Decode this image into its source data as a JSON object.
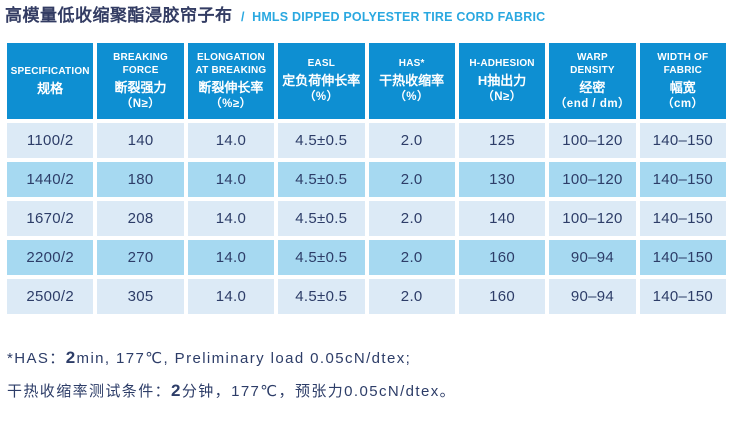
{
  "colors": {
    "header_blue": "#0E8FD2",
    "row_light": "#DCEAF6",
    "row_medium": "#A6D9F1",
    "cell_text": "#2D3D68",
    "title_zh_color": "#333C63",
    "title_en_color": "#2AA8E0",
    "header_text": "#FFFFFF"
  },
  "header": {
    "title_zh": "高模量低收缩聚酯浸胶帘子布",
    "title_separator": "/",
    "title_en": "HMLS DIPPED POLYESTER TIRE CORD FABRIC"
  },
  "table": {
    "columns": [
      {
        "en": "SPECIFICATION",
        "zh": "规格",
        "unit": ""
      },
      {
        "en": "BREAKING\nFORCE",
        "zh": "断裂强力",
        "unit": "（N≥）"
      },
      {
        "en": "ELONGATION\nAT BREAKING",
        "zh": "断裂伸长率",
        "unit": "（%≥）"
      },
      {
        "en": "EASL",
        "zh": "定负荷伸长率",
        "unit": "（%）"
      },
      {
        "en": "HAS*",
        "zh": "干热收缩率",
        "unit": "（%）"
      },
      {
        "en": "H-ADHESION",
        "zh": "H抽出力",
        "unit": "（N≥）"
      },
      {
        "en": "WARP\nDENSITY",
        "zh": "经密",
        "unit": "（end / dm）"
      },
      {
        "en": "WIDTH OF\nFABRIC",
        "zh": "幅宽",
        "unit": "（cm）"
      }
    ],
    "rows": [
      [
        "1100/2",
        "140",
        "14.0",
        "4.5±0.5",
        "2.0",
        "125",
        "100–120",
        "140–150"
      ],
      [
        "1440/2",
        "180",
        "14.0",
        "4.5±0.5",
        "2.0",
        "130",
        "100–120",
        "140–150"
      ],
      [
        "1670/2",
        "208",
        "14.0",
        "4.5±0.5",
        "2.0",
        "140",
        "100–120",
        "140–150"
      ],
      [
        "2200/2",
        "270",
        "14.0",
        "4.5±0.5",
        "2.0",
        "160",
        "90–94",
        "140–150"
      ],
      [
        "2500/2",
        "305",
        "14.0",
        "4.5±0.5",
        "2.0",
        "160",
        "90–94",
        "140–150"
      ]
    ]
  },
  "footnotes": {
    "line1": {
      "pre": "*HAS：",
      "bold": "2",
      "post": "min, 177℃, Preliminary load 0.05cN/dtex;"
    },
    "line2": {
      "pre": "干热收缩率测试条件：",
      "bold": "2",
      "post": "分钟，177℃，预张力0.05cN/dtex。"
    }
  }
}
